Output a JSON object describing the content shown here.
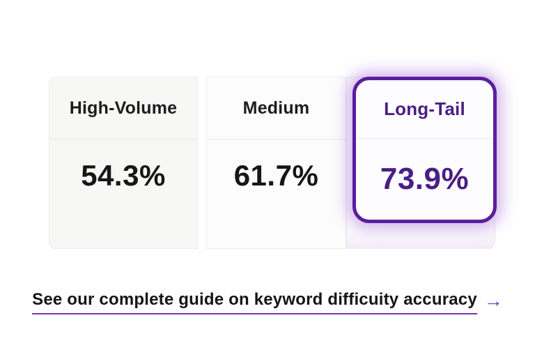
{
  "table": {
    "columns": [
      {
        "label": "High-Volume",
        "value": "54.3%",
        "highlighted": false
      },
      {
        "label": "Medium",
        "value": "61.7%",
        "highlighted": false
      },
      {
        "label": "Long-Tail",
        "value": "73.9%",
        "highlighted": true
      }
    ]
  },
  "link": {
    "label": "See our complete guide on keyword difficuity accuracy",
    "arrow": "→"
  },
  "colors": {
    "highlight_border": "#5B1E9E",
    "highlight_text": "#4A1E85",
    "link_underline": "#7B2FBE",
    "text_dark": "#161616",
    "cell_background": "#f7f7f6"
  }
}
